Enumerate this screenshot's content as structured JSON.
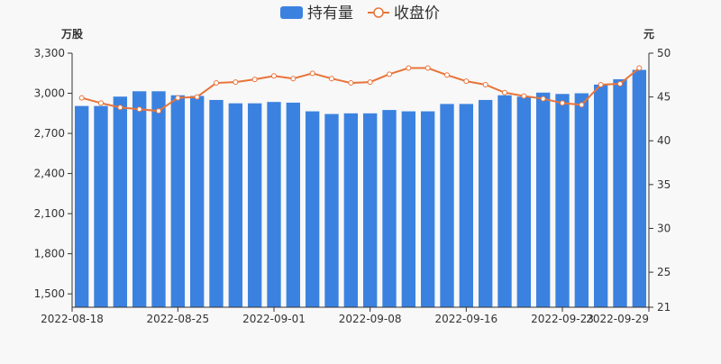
{
  "legend": {
    "holdings_label": "持有量",
    "close_label": "收盘价",
    "holdings_color": "#3b82e0",
    "close_color": "#e8743a"
  },
  "axis_units": {
    "left": "万股",
    "right": "元"
  },
  "chart_data": {
    "type": "bar",
    "legend_position": "top-center",
    "grid": false,
    "dates": [
      "2022-08-18",
      "2022-08-19",
      "2022-08-22",
      "2022-08-23",
      "2022-08-24",
      "2022-08-25",
      "2022-08-26",
      "2022-08-29",
      "2022-08-30",
      "2022-08-31",
      "2022-09-01",
      "2022-09-02",
      "2022-09-05",
      "2022-09-06",
      "2022-09-07",
      "2022-09-08",
      "2022-09-09",
      "2022-09-13",
      "2022-09-14",
      "2022-09-15",
      "2022-09-16",
      "2022-09-19",
      "2022-09-20",
      "2022-09-21",
      "2022-09-22",
      "2022-09-23",
      "2022-09-26",
      "2022-09-27",
      "2022-09-28",
      "2022-09-29"
    ],
    "x_tick_labels": [
      "2022-08-18",
      "2022-08-25",
      "2022-09-01",
      "2022-09-08",
      "2022-09-16",
      "2022-09-23",
      "2022-09-29"
    ],
    "series": [
      {
        "name": "持有量",
        "type": "bar",
        "axis": "left",
        "values": [
          2905,
          2905,
          2975,
          3015,
          3015,
          2985,
          2980,
          2950,
          2925,
          2925,
          2935,
          2930,
          2865,
          2845,
          2850,
          2850,
          2875,
          2865,
          2865,
          2920,
          2920,
          2950,
          2985,
          2975,
          3005,
          2995,
          3000,
          3065,
          3105,
          3175
        ]
      },
      {
        "name": "收盘价",
        "type": "line",
        "axis": "right",
        "values": [
          44.9,
          44.3,
          43.8,
          43.6,
          43.4,
          44.9,
          45.0,
          46.6,
          46.7,
          47.0,
          47.4,
          47.1,
          47.7,
          47.1,
          46.6,
          46.7,
          47.6,
          48.3,
          48.3,
          47.5,
          46.8,
          46.4,
          45.5,
          45.1,
          44.8,
          44.3,
          44.1,
          46.4,
          46.5,
          48.3
        ]
      }
    ],
    "y_left": {
      "ylim": [
        1400,
        3300
      ],
      "ticks": [
        "1,500",
        "1,800",
        "2,100",
        "2,400",
        "2,700",
        "3,000",
        "3,300"
      ],
      "tick_values": [
        1500,
        1800,
        2100,
        2400,
        2700,
        3000,
        3300
      ]
    },
    "y_right": {
      "ylim": [
        21,
        50
      ],
      "ticks": [
        "21",
        "25",
        "30",
        "35",
        "40",
        "45",
        "50"
      ],
      "tick_values": [
        21,
        25,
        30,
        35,
        40,
        45,
        50
      ]
    }
  }
}
